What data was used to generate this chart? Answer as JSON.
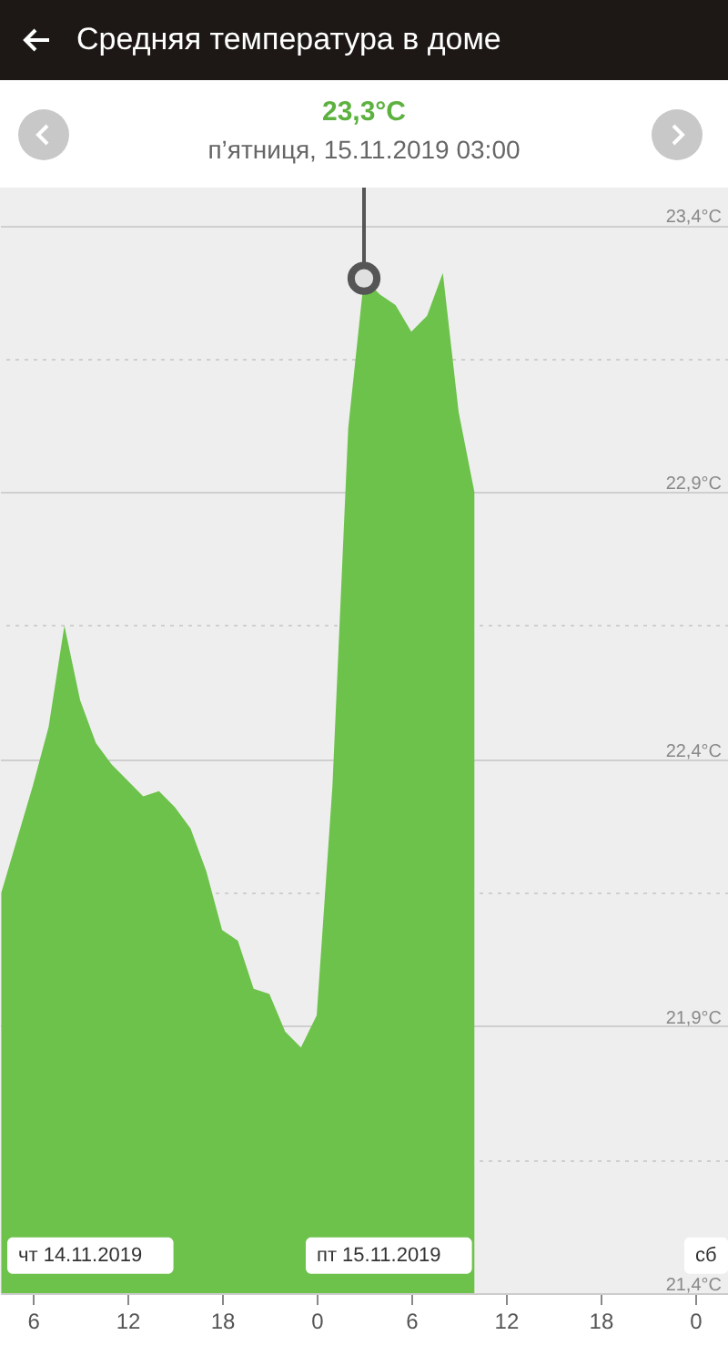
{
  "chart_data": {
    "type": "area",
    "title": "Средняя температура в доме",
    "x": [
      "2019-11-14T04:00",
      "2019-11-14T05:00",
      "2019-11-14T06:00",
      "2019-11-14T07:00",
      "2019-11-14T08:00",
      "2019-11-14T09:00",
      "2019-11-14T10:00",
      "2019-11-14T11:00",
      "2019-11-14T12:00",
      "2019-11-14T13:00",
      "2019-11-14T14:00",
      "2019-11-14T15:00",
      "2019-11-14T16:00",
      "2019-11-14T17:00",
      "2019-11-14T18:00",
      "2019-11-14T19:00",
      "2019-11-14T20:00",
      "2019-11-14T21:00",
      "2019-11-14T22:00",
      "2019-11-14T23:00",
      "2019-11-15T00:00",
      "2019-11-15T01:00",
      "2019-11-15T02:00",
      "2019-11-15T03:00",
      "2019-11-15T04:00",
      "2019-11-15T05:00",
      "2019-11-15T06:00",
      "2019-11-15T07:00",
      "2019-11-15T08:00",
      "2019-11-15T09:00",
      "2019-11-15T10:00"
    ],
    "values": [
      22.15,
      22.25,
      22.35,
      22.46,
      22.65,
      22.51,
      22.43,
      22.39,
      22.36,
      22.33,
      22.34,
      22.31,
      22.27,
      22.19,
      22.08,
      22.06,
      21.97,
      21.96,
      21.89,
      21.86,
      21.92,
      22.35,
      23.02,
      23.3,
      23.27,
      23.25,
      23.2,
      23.23,
      23.31,
      23.05,
      22.9
    ],
    "color": "#6cc24a",
    "xlim": [
      "2019-11-14T03:55",
      "2019-11-16T02:05"
    ],
    "xticks": [
      {
        "value": "2019-11-14T06:00",
        "label": "6"
      },
      {
        "value": "2019-11-14T12:00",
        "label": "12"
      },
      {
        "value": "2019-11-14T18:00",
        "label": "18"
      },
      {
        "value": "2019-11-15T00:00",
        "label": "0"
      },
      {
        "value": "2019-11-15T06:00",
        "label": "6"
      },
      {
        "value": "2019-11-15T12:00",
        "label": "12"
      },
      {
        "value": "2019-11-15T18:00",
        "label": "18"
      },
      {
        "value": "2019-11-16T00:00",
        "label": "0"
      }
    ],
    "ylim": [
      21.4,
      23.47
    ],
    "yticks": [
      {
        "value": 21.4,
        "label": "21,4°C"
      },
      {
        "value": 21.65,
        "label": null
      },
      {
        "value": 21.9,
        "label": "21,9°C"
      },
      {
        "value": 22.15,
        "label": null
      },
      {
        "value": 22.4,
        "label": "22,4°C"
      },
      {
        "value": 22.65,
        "label": null
      },
      {
        "value": 22.9,
        "label": "22,9°C"
      },
      {
        "value": 23.15,
        "label": null
      },
      {
        "value": 23.4,
        "label": "23,4°C"
      }
    ],
    "grid": "y",
    "annotations": [
      "23,3°C",
      {
        "text": "п’ятниця, 15.11.2019 03:00",
        "x": "2019-11-15T03:00",
        "y": 23.3
      },
      "чт 14.11.2019",
      "пт 15.11.2019",
      "сб"
    ]
  }
}
